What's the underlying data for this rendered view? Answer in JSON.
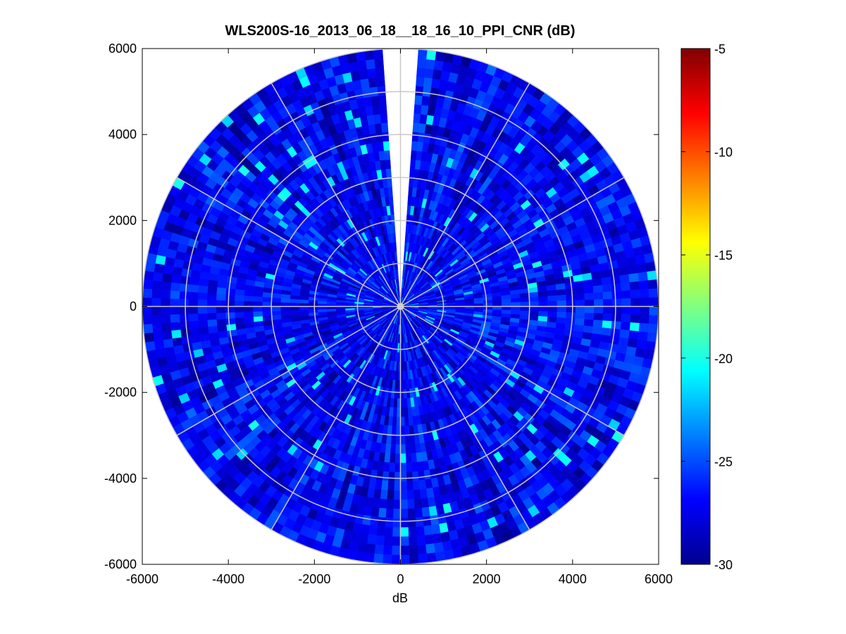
{
  "chart_data": {
    "type": "heatmap",
    "subtype": "polar-ppi",
    "title": "WLS200S-16_2013_06_18__18_16_10_PPI_CNR (dB)",
    "xlabel": "dB",
    "ylabel": "",
    "xlim": [
      -6000,
      6000
    ],
    "ylim": [
      -6000,
      6000
    ],
    "xticks": [
      "-6000",
      "-4000",
      "-2000",
      "0",
      "2000",
      "4000",
      "6000"
    ],
    "yticks": [
      "6000",
      "4000",
      "2000",
      "0",
      "-2000",
      "-4000",
      "-6000"
    ],
    "grid": true,
    "polar_grid": {
      "range_rings": [
        1000,
        2000,
        3000,
        4000,
        5000,
        6000
      ],
      "spoke_angles_deg": [
        0,
        30,
        60,
        90,
        120,
        150,
        180,
        210,
        240,
        270,
        300,
        330
      ]
    },
    "data_extent": {
      "max_range": 6000,
      "gap_sector_deg": [
        -4,
        4
      ]
    },
    "colorbar": {
      "colormap": "jet",
      "clim": [
        -30,
        -5
      ],
      "ticks": [
        "-5",
        "-10",
        "-15",
        "-20",
        "-25",
        "-30"
      ],
      "tick_values": [
        -5,
        -10,
        -15,
        -20,
        -25,
        -30
      ]
    },
    "value_summary": {
      "dominant_range": [
        -30,
        -25
      ],
      "typical": -27,
      "max_observed": -21
    }
  }
}
